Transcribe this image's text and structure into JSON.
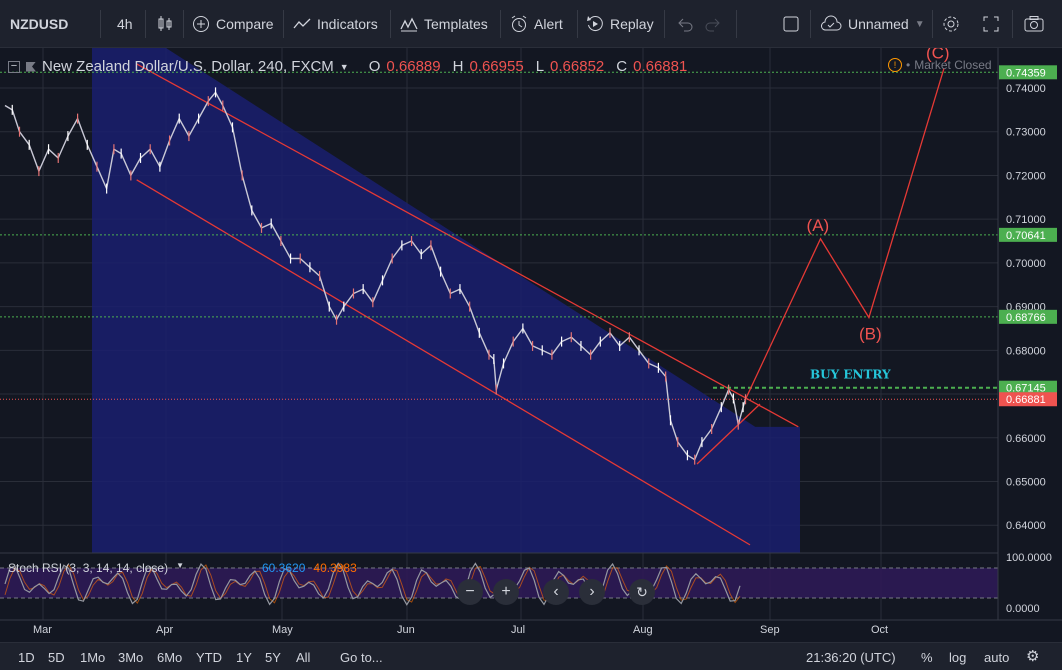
{
  "toolbar": {
    "symbol": "NZDUSD",
    "interval": "4h",
    "compare": "Compare",
    "indicators": "Indicators",
    "templates": "Templates",
    "alert": "Alert",
    "replay": "Replay",
    "layout_name": "Unnamed"
  },
  "legend": {
    "title": "New Zealand Dollar/U.S. Dollar, 240, FXCM",
    "o_label": "O",
    "o": "0.66889",
    "h_label": "H",
    "h": "0.66955",
    "l_label": "L",
    "l": "0.66852",
    "c_label": "C",
    "c": "0.66881",
    "market_status": "Market Closed"
  },
  "rsi": {
    "title": "Stoch RSI (3, 3, 14, 14, close)",
    "k": "60.3620",
    "d": "40.3983",
    "colors": {
      "k": "#2196f3",
      "d": "#ff6d00"
    }
  },
  "bottombar": {
    "ranges": [
      "1D",
      "5D",
      "1Mo",
      "3Mo",
      "6Mo",
      "YTD",
      "1Y",
      "5Y",
      "All"
    ],
    "goto": "Go to...",
    "time": "21:36:20 (UTC)",
    "percent": "%",
    "log": "log",
    "auto": "auto"
  },
  "chart_data": {
    "type": "line",
    "x_ticks": [
      "Mar",
      "Apr",
      "May",
      "Jun",
      "Jul",
      "Aug",
      "Sep",
      "Oct"
    ],
    "y_ticks": [
      0.74,
      0.73,
      0.72,
      0.71,
      0.7,
      0.69,
      0.68,
      0.67,
      0.66,
      0.65,
      0.64
    ],
    "ylim": [
      0.6355,
      0.7455
    ],
    "price_series": [
      [
        0.0,
        0.736
      ],
      [
        1.5,
        0.735
      ],
      [
        3,
        0.73
      ],
      [
        5,
        0.727
      ],
      [
        7,
        0.721
      ],
      [
        9,
        0.726
      ],
      [
        11,
        0.724
      ],
      [
        13,
        0.729
      ],
      [
        15,
        0.733
      ],
      [
        17,
        0.727
      ],
      [
        19,
        0.722
      ],
      [
        21,
        0.717
      ],
      [
        22.5,
        0.726
      ],
      [
        24,
        0.725
      ],
      [
        26,
        0.72
      ],
      [
        28,
        0.724
      ],
      [
        30,
        0.726
      ],
      [
        32,
        0.722
      ],
      [
        34,
        0.728
      ],
      [
        36,
        0.733
      ],
      [
        38,
        0.729
      ],
      [
        40,
        0.733
      ],
      [
        42,
        0.737
      ],
      [
        43.5,
        0.739
      ],
      [
        45,
        0.736
      ],
      [
        47,
        0.731
      ],
      [
        49,
        0.72
      ],
      [
        51,
        0.712
      ],
      [
        53,
        0.708
      ],
      [
        55,
        0.709
      ],
      [
        57,
        0.705
      ],
      [
        59,
        0.701
      ],
      [
        61,
        0.701
      ],
      [
        63,
        0.699
      ],
      [
        65,
        0.697
      ],
      [
        67,
        0.69
      ],
      [
        68.5,
        0.687
      ],
      [
        70,
        0.69
      ],
      [
        72,
        0.693
      ],
      [
        74,
        0.694
      ],
      [
        76,
        0.691
      ],
      [
        78,
        0.696
      ],
      [
        80,
        0.701
      ],
      [
        82,
        0.704
      ],
      [
        84,
        0.705
      ],
      [
        86,
        0.702
      ],
      [
        88,
        0.704
      ],
      [
        90,
        0.698
      ],
      [
        92,
        0.693
      ],
      [
        94,
        0.694
      ],
      [
        96,
        0.69
      ],
      [
        98,
        0.684
      ],
      [
        100,
        0.679
      ],
      [
        101,
        0.678
      ],
      [
        101.5,
        0.671
      ],
      [
        103,
        0.677
      ],
      [
        105,
        0.682
      ],
      [
        107,
        0.685
      ],
      [
        109,
        0.681
      ],
      [
        111,
        0.68
      ],
      [
        113,
        0.679
      ],
      [
        115,
        0.682
      ],
      [
        117,
        0.683
      ],
      [
        119,
        0.681
      ],
      [
        121,
        0.679
      ],
      [
        123,
        0.682
      ],
      [
        125,
        0.684
      ],
      [
        127,
        0.681
      ],
      [
        129,
        0.683
      ],
      [
        131,
        0.68
      ],
      [
        133,
        0.677
      ],
      [
        135,
        0.676
      ],
      [
        136.5,
        0.674
      ],
      [
        137.5,
        0.664
      ],
      [
        139,
        0.659
      ],
      [
        141,
        0.656
      ],
      [
        142.5,
        0.655
      ],
      [
        144,
        0.659
      ],
      [
        146,
        0.662
      ],
      [
        148,
        0.667
      ],
      [
        149.5,
        0.671
      ],
      [
        150.5,
        0.669
      ],
      [
        151.5,
        0.663
      ],
      [
        152.5,
        0.667
      ],
      [
        153,
        0.6688
      ]
    ],
    "current_price": 0.66881,
    "horizontal_levels": [
      0.74359,
      0.70641,
      0.68766
    ],
    "buy_entry_level": 0.67145,
    "buy_entry_label": "BUY ENTRY",
    "channel_upper": [
      [
        18,
        0.7455
      ],
      [
        163,
        0.6625
      ]
    ],
    "channel_lower": [
      [
        18,
        0.719
      ],
      [
        146,
        0.6355
      ]
    ],
    "support_line": [
      [
        142,
        0.654
      ],
      [
        155,
        0.669
      ]
    ],
    "wave_projection": {
      "points": [
        [
          153,
          0.6688
        ],
        [
          168.5,
          0.7055
        ],
        [
          178.5,
          0.6875
        ],
        [
          194,
          0.7445
        ]
      ],
      "labels": [
        "(A)",
        "(B)",
        "(C)"
      ]
    },
    "price_labels": [
      "0.74359",
      "0.70641",
      "0.68766",
      "0.67145",
      "0.66881"
    ],
    "rsi_axis": [
      "100.0000",
      "0.0000"
    ]
  }
}
